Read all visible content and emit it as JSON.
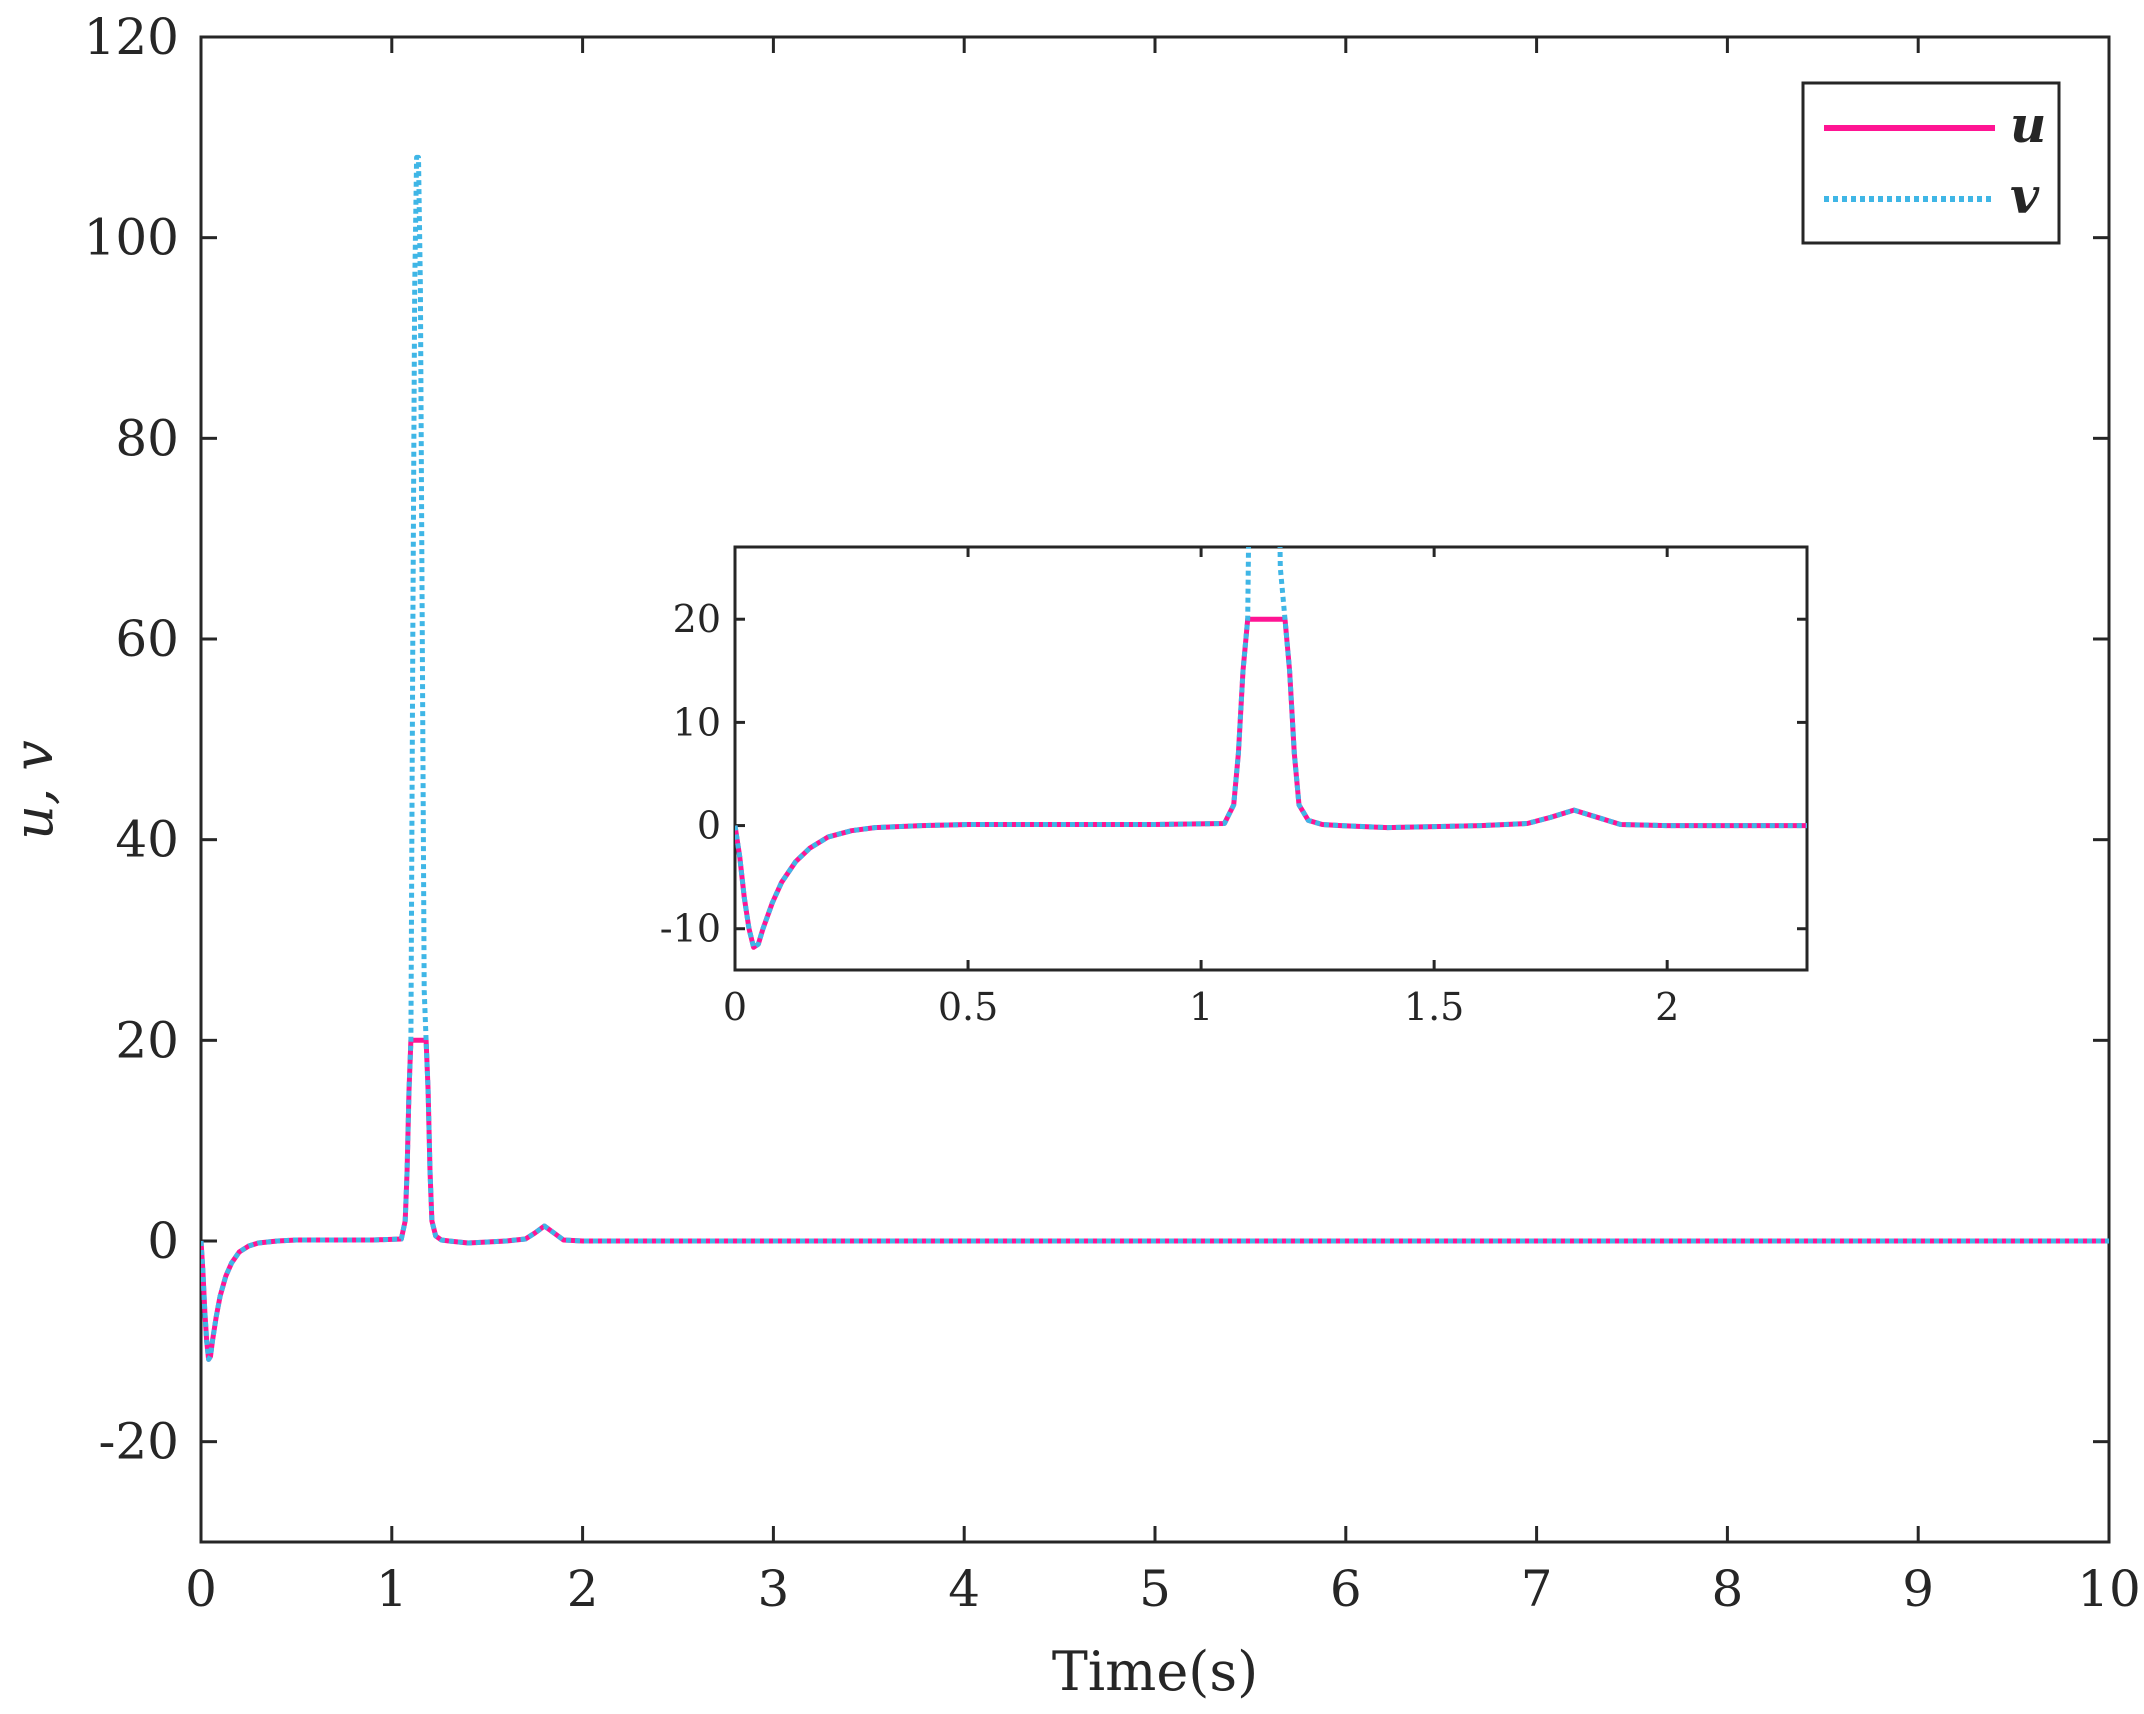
{
  "chart_data": [
    {
      "type": "line",
      "xlabel": "Time(s)",
      "ylabel": "u, v",
      "xlim": [
        0,
        10
      ],
      "ylim": [
        -30,
        120
      ],
      "xticks": [
        "0",
        "1",
        "2",
        "3",
        "4",
        "5",
        "6",
        "7",
        "8",
        "9",
        "10"
      ],
      "yticks": [
        "-20",
        "0",
        "20",
        "40",
        "60",
        "80",
        "100",
        "120"
      ],
      "grid": false,
      "legend": "top-right",
      "series": [
        {
          "name": "u",
          "color": "#ff1493",
          "style": "solid",
          "x": [
            0,
            0.01,
            0.02,
            0.03,
            0.04,
            0.05,
            0.06,
            0.08,
            0.1,
            0.13,
            0.16,
            0.2,
            0.25,
            0.3,
            0.4,
            0.5,
            0.7,
            0.9,
            1.05,
            1.07,
            1.08,
            1.09,
            1.1,
            1.18,
            1.19,
            1.2,
            1.21,
            1.23,
            1.26,
            1.3,
            1.4,
            1.5,
            1.6,
            1.7,
            1.75,
            1.8,
            1.85,
            1.9,
            2.0,
            3.0,
            4.0,
            5.0,
            6.0,
            7.0,
            8.0,
            9.0,
            10.0
          ],
          "y": [
            0,
            -3,
            -7,
            -10,
            -11.8,
            -11.5,
            -10,
            -7.5,
            -5.5,
            -3.5,
            -2.2,
            -1.1,
            -0.5,
            -0.2,
            0,
            0.1,
            0.1,
            0.1,
            0.2,
            2,
            7,
            15,
            20,
            20,
            15,
            7,
            2,
            0.5,
            0.1,
            0,
            -0.2,
            -0.1,
            0,
            0.2,
            0.8,
            1.5,
            0.8,
            0.1,
            0,
            0,
            0,
            0,
            0,
            0,
            0,
            0,
            0
          ]
        },
        {
          "name": "v",
          "color": "#3fb6e6",
          "style": "dotted",
          "x": [
            0,
            0.01,
            0.02,
            0.03,
            0.04,
            0.05,
            0.06,
            0.08,
            0.1,
            0.13,
            0.16,
            0.2,
            0.25,
            0.3,
            0.4,
            0.5,
            0.7,
            0.9,
            1.05,
            1.07,
            1.08,
            1.09,
            1.1,
            1.11,
            1.12,
            1.13,
            1.14,
            1.15,
            1.16,
            1.17,
            1.18,
            1.19,
            1.2,
            1.21,
            1.23,
            1.26,
            1.3,
            1.4,
            1.5,
            1.6,
            1.7,
            1.75,
            1.8,
            1.85,
            1.9,
            2.0,
            3.0,
            4.0,
            5.0,
            6.0,
            7.0,
            8.0,
            9.0,
            10.0
          ],
          "y": [
            0,
            -3,
            -7,
            -10,
            -11.8,
            -11.5,
            -10,
            -7.5,
            -5.5,
            -3.5,
            -2.2,
            -1.1,
            -0.5,
            -0.2,
            0,
            0.1,
            0.1,
            0.1,
            0.2,
            2,
            7,
            15,
            20,
            60,
            95,
            108,
            108,
            95,
            60,
            25,
            20,
            15,
            7,
            2,
            0.5,
            0.1,
            0,
            -0.2,
            -0.1,
            0,
            0.2,
            0.8,
            1.5,
            0.8,
            0.1,
            0,
            0,
            0,
            0,
            0,
            0,
            0,
            0,
            0
          ]
        }
      ]
    },
    {
      "type": "line",
      "xlim": [
        0,
        2.3
      ],
      "ylim": [
        -14,
        27
      ],
      "xticks": [
        "0",
        "0.5",
        "1",
        "1.5",
        "2"
      ],
      "yticks": [
        "-10",
        "0",
        "10",
        "20"
      ],
      "grid": false,
      "series_ref": [
        "u",
        "v"
      ]
    }
  ]
}
